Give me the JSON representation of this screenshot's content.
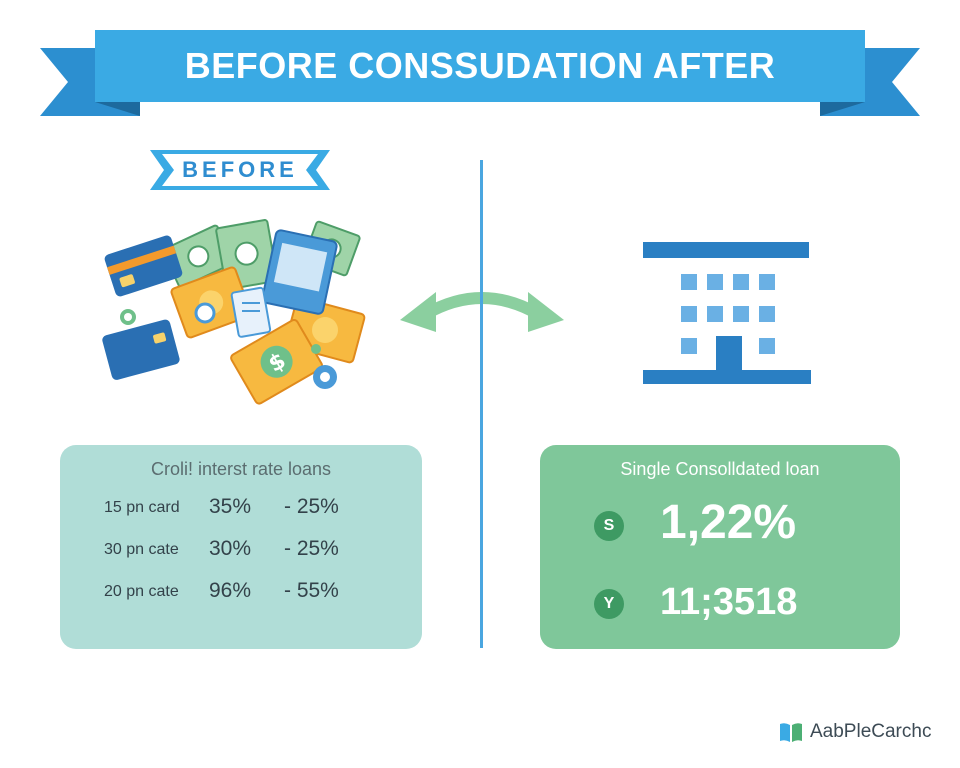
{
  "header": {
    "title": "BEFORE CONSSUDATION AFTER"
  },
  "before_section": {
    "label": "BEFORE",
    "illustration_icon": "cards-and-cash-pile-icon"
  },
  "exchange_arrow_icon": "double-arrow-icon",
  "after_section": {
    "illustration_icon": "bank-building-icon"
  },
  "left_card": {
    "title": "Croli! interst rate loans",
    "rows": [
      {
        "name": "15 pn card",
        "rate": "35%",
        "change": "- 25%"
      },
      {
        "name": "30 pn cate",
        "rate": "30%",
        "change": "- 25%"
      },
      {
        "name": "20 pn cate",
        "rate": "96%",
        "change": "- 55%"
      }
    ]
  },
  "right_card": {
    "title": "Single Consolldated loan",
    "stats": [
      {
        "icon_text": "S",
        "value": "1,22%"
      },
      {
        "icon_text": "Y",
        "value": "11;3518"
      }
    ]
  },
  "logo": {
    "text": "AabPleCarchc",
    "icon": "open-book-icon"
  },
  "colors": {
    "ribbon_blue": "#3aaae4",
    "ribbon_dark": "#2680b8",
    "left_card_bg": "#b0ddd7",
    "right_card_bg": "#7fc79a",
    "arrow_green": "#8bcf9f",
    "building_blue": "#2a7fc3"
  }
}
